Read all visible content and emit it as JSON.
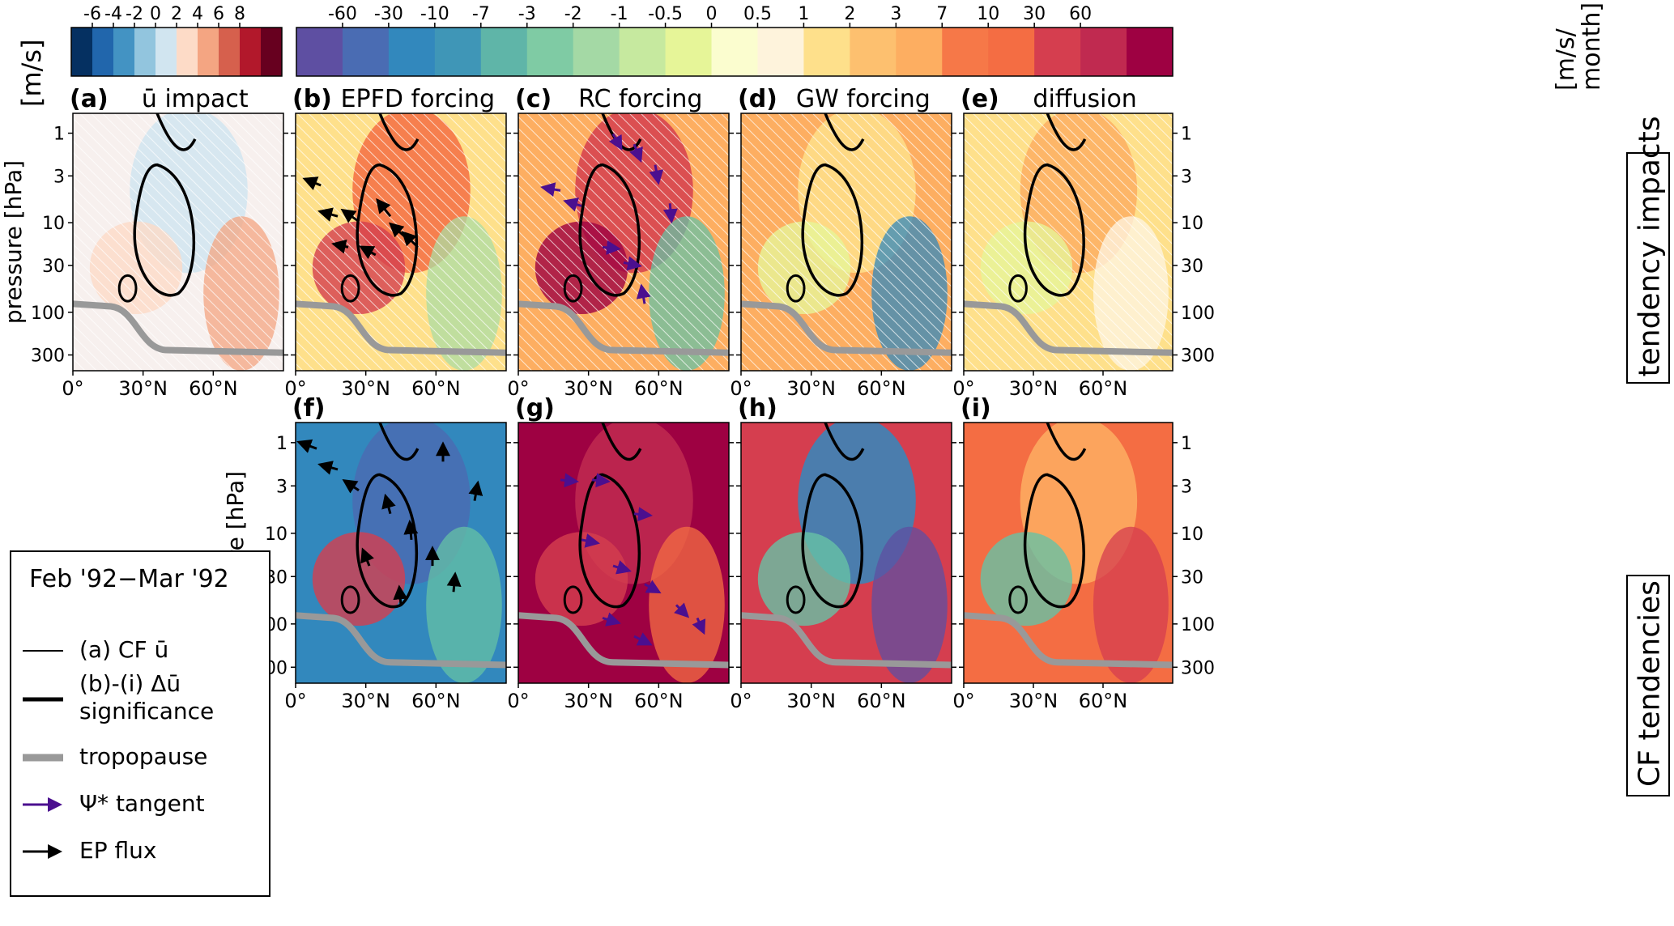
{
  "colorbars": {
    "left": {
      "unit": "[m/s]",
      "ticks": [
        "-6",
        "-4",
        "-2",
        "0",
        "2",
        "4",
        "6",
        "8"
      ],
      "colors": [
        "#053061",
        "#2166ac",
        "#4393c3",
        "#92c5de",
        "#d1e5f0",
        "#fddbc7",
        "#f4a582",
        "#d6604d",
        "#b2182b",
        "#67001f"
      ]
    },
    "right": {
      "unit_line1": "[m/s/",
      "unit_line2": "month]",
      "ticks": [
        "-60",
        "-30",
        "-10",
        "-7",
        "-3",
        "-2",
        "-1",
        "-0.5",
        "0",
        "0.5",
        "1",
        "2",
        "3",
        "7",
        "10",
        "30",
        "60"
      ],
      "colors": [
        "#5e4fa2",
        "#4a6cb3",
        "#3288bd",
        "#3f96b7",
        "#5fb5a8",
        "#7fcba4",
        "#a4d9a5",
        "#c6e99f",
        "#e6f598",
        "#fbfdcf",
        "#fef3dc",
        "#fee08b",
        "#fdc06f",
        "#fdae61",
        "#f67848",
        "#f46d43",
        "#d53e4f",
        "#c02a50",
        "#9e0142"
      ]
    }
  },
  "panels": [
    {
      "id": "a",
      "label": "(a)",
      "title": "ū impact",
      "row": "top"
    },
    {
      "id": "b",
      "label": "(b)",
      "title": "EPFD forcing",
      "row": "top"
    },
    {
      "id": "c",
      "label": "(c)",
      "title": "RC forcing",
      "row": "top"
    },
    {
      "id": "d",
      "label": "(d)",
      "title": "GW forcing",
      "row": "top"
    },
    {
      "id": "e",
      "label": "(e)",
      "title": "diffusion",
      "row": "top"
    },
    {
      "id": "f",
      "label": "(f)",
      "title": "",
      "row": "bottom"
    },
    {
      "id": "g",
      "label": "(g)",
      "title": "",
      "row": "bottom"
    },
    {
      "id": "h",
      "label": "(h)",
      "title": "",
      "row": "bottom"
    },
    {
      "id": "i",
      "label": "(i)",
      "title": "",
      "row": "bottom"
    }
  ],
  "axes": {
    "ylabel": "pressure [hPa]",
    "pressure_ticks": [
      "1",
      "3",
      "10",
      "30",
      "100",
      "300"
    ],
    "lat_ticks": [
      "0°",
      "30°N",
      "60°N"
    ]
  },
  "row_labels": {
    "top": "tendency impacts",
    "bottom": "CF tendencies"
  },
  "legend": {
    "title": "Feb '92−Mar '92",
    "items": [
      {
        "label": "(a) CF ū",
        "style": "thin-black-line"
      },
      {
        "label": "(b)-(i) Δū",
        "label2": "significance",
        "style": "thick-black-line"
      },
      {
        "label": "tropopause",
        "style": "thick-gray-line"
      },
      {
        "label": "Ψ* tangent",
        "style": "purple-arrow"
      },
      {
        "label": "EP flux",
        "style": "black-arrow"
      }
    ]
  },
  "colors": {
    "tropopause": "#999999",
    "psi_arrow": "#4b0f8f",
    "ep_arrow": "#000000",
    "contour": "#000000"
  }
}
